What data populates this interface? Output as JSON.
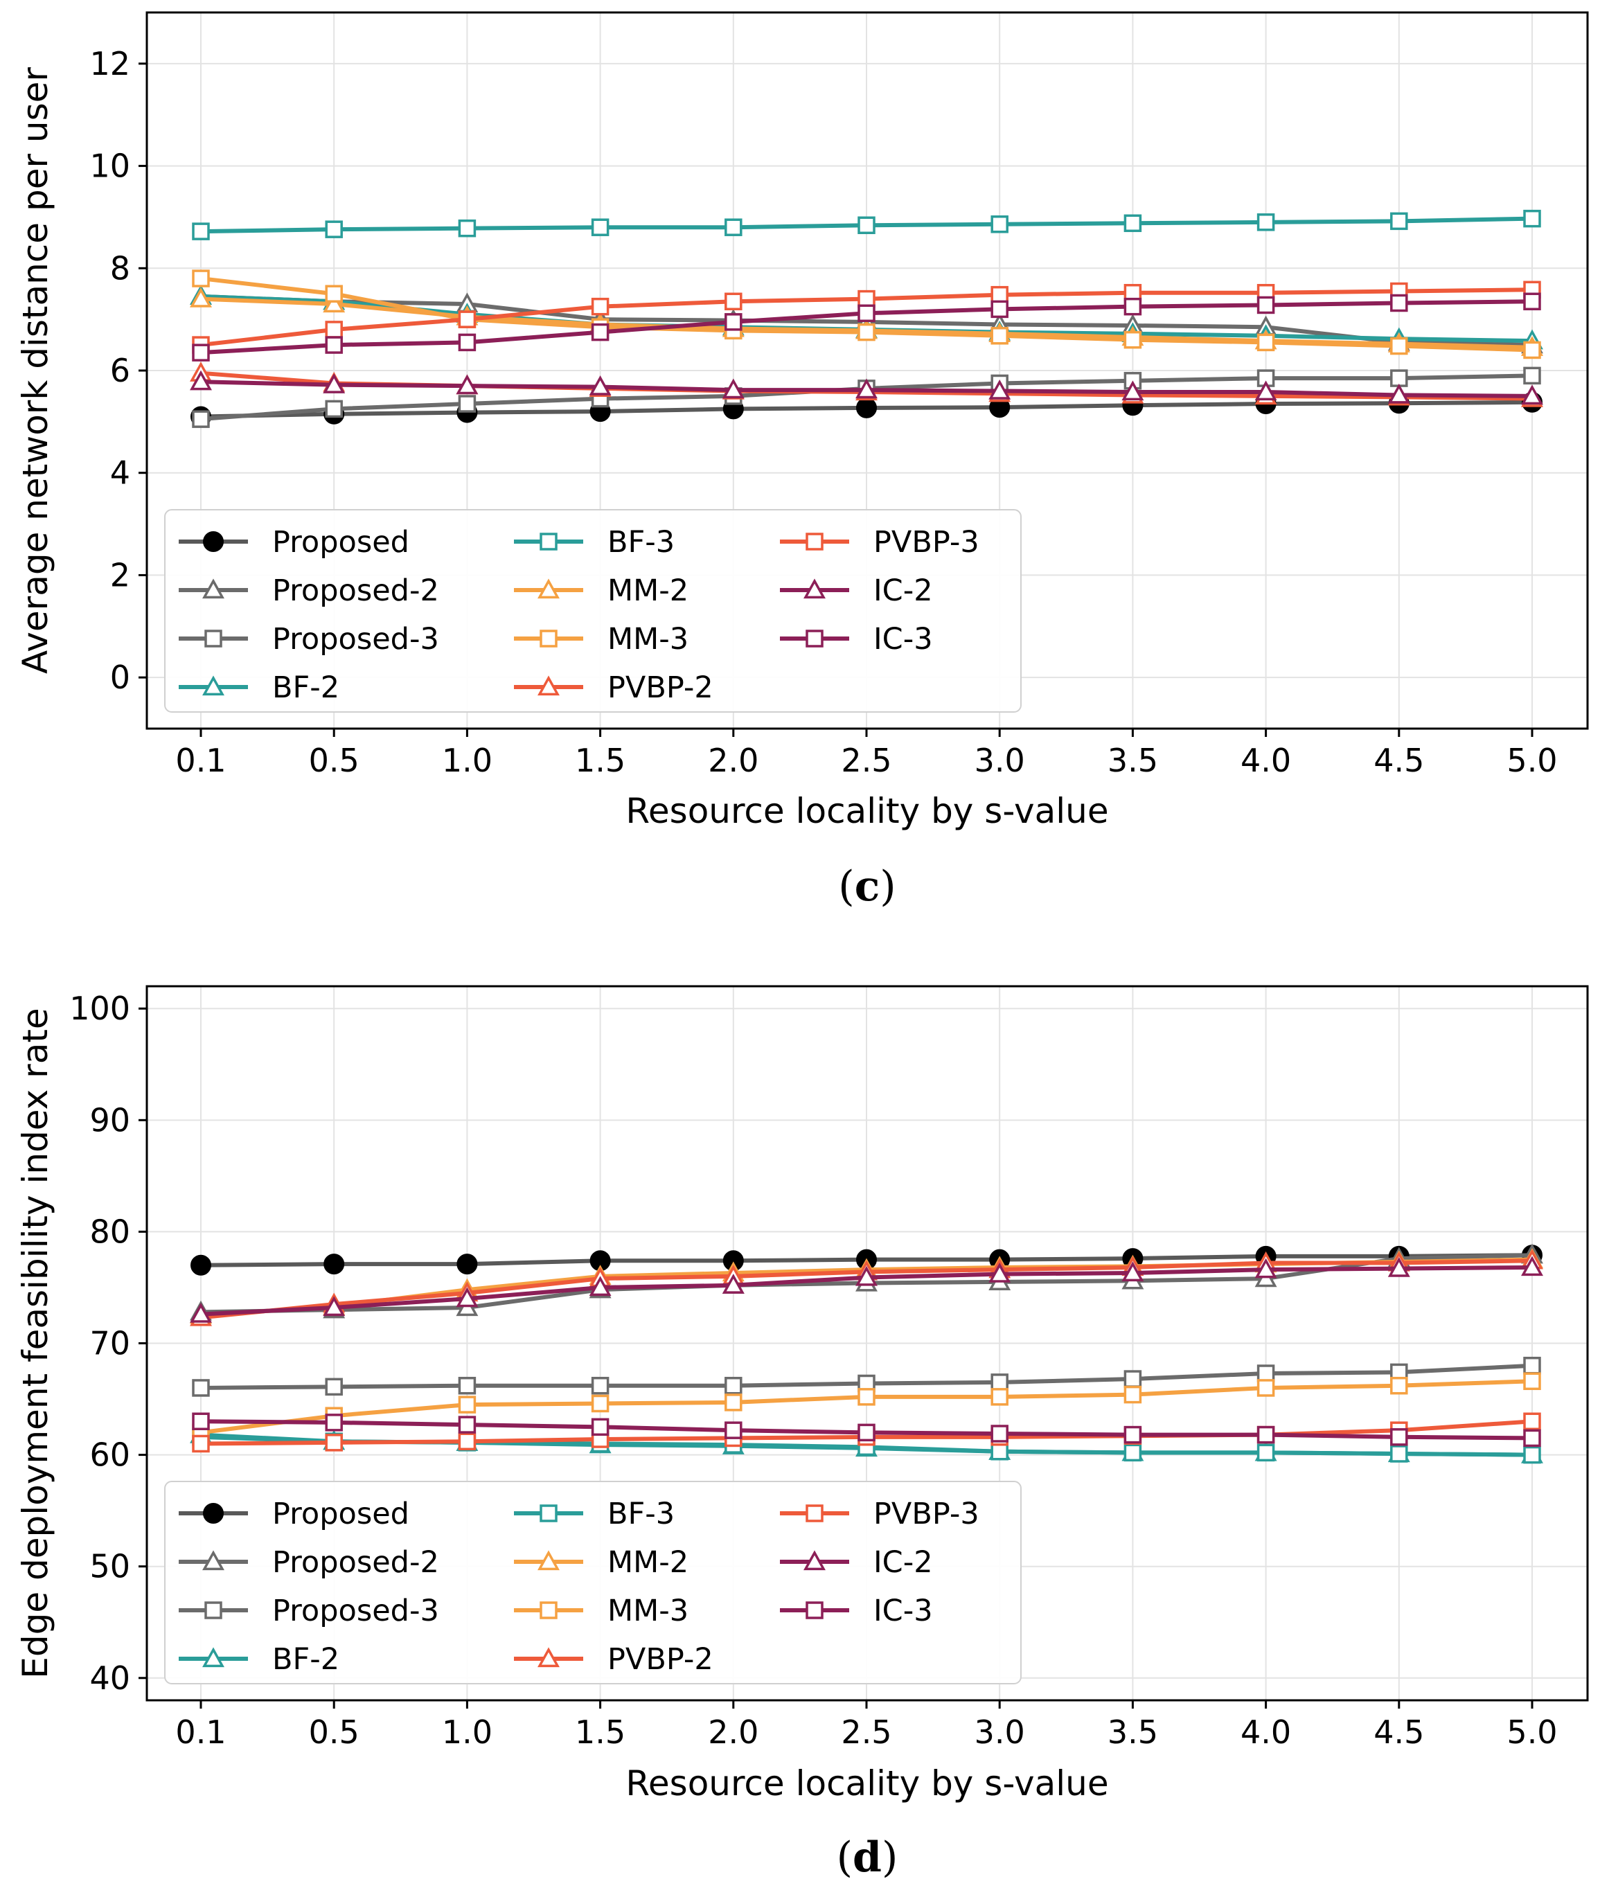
{
  "chart_data": [
    {
      "type": "line",
      "caption_open": "(",
      "caption_letter": "c",
      "caption_close": ")",
      "xlabel": "Resource locality by s-value",
      "ylabel": "Average network distance per user",
      "categories": [
        "0.1",
        "0.5",
        "1.0",
        "1.5",
        "2.0",
        "2.5",
        "3.0",
        "3.5",
        "4.0",
        "4.5",
        "5.0"
      ],
      "ylim": [
        -1,
        13
      ],
      "yticks": [
        0,
        2,
        4,
        6,
        8,
        10,
        12
      ],
      "grid": true,
      "legend_position": "lower-left",
      "series": [
        {
          "name": "Proposed",
          "color": "#595959",
          "marker": "circle",
          "values": [
            5.1,
            5.15,
            5.18,
            5.2,
            5.25,
            5.27,
            5.28,
            5.32,
            5.35,
            5.36,
            5.38
          ]
        },
        {
          "name": "Proposed-2",
          "color": "#6b6b6b",
          "marker": "triangle",
          "values": [
            7.45,
            7.35,
            7.3,
            7.0,
            6.98,
            6.95,
            6.9,
            6.88,
            6.85,
            6.55,
            6.5
          ]
        },
        {
          "name": "Proposed-3",
          "color": "#6b6b6b",
          "marker": "square",
          "values": [
            5.05,
            5.25,
            5.35,
            5.45,
            5.5,
            5.65,
            5.75,
            5.8,
            5.85,
            5.85,
            5.9
          ]
        },
        {
          "name": "BF-2",
          "color": "#2a9d99",
          "marker": "triangle",
          "values": [
            7.45,
            7.35,
            7.1,
            6.9,
            6.85,
            6.8,
            6.75,
            6.72,
            6.68,
            6.62,
            6.58
          ]
        },
        {
          "name": "BF-3",
          "color": "#2a9d99",
          "marker": "square",
          "values": [
            8.72,
            8.76,
            8.78,
            8.8,
            8.8,
            8.84,
            8.86,
            8.88,
            8.9,
            8.92,
            8.97
          ]
        },
        {
          "name": "MM-2",
          "color": "#f5a142",
          "marker": "triangle",
          "values": [
            7.4,
            7.3,
            7.05,
            6.9,
            6.82,
            6.78,
            6.72,
            6.65,
            6.58,
            6.52,
            6.45
          ]
        },
        {
          "name": "MM-3",
          "color": "#f5a142",
          "marker": "square",
          "values": [
            7.8,
            7.5,
            7.0,
            6.85,
            6.78,
            6.75,
            6.68,
            6.6,
            6.55,
            6.48,
            6.4
          ]
        },
        {
          "name": "PVBP-2",
          "color": "#ee5a3a",
          "marker": "triangle",
          "values": [
            5.95,
            5.75,
            5.7,
            5.65,
            5.6,
            5.58,
            5.55,
            5.52,
            5.5,
            5.48,
            5.45
          ]
        },
        {
          "name": "PVBP-3",
          "color": "#ee5a3a",
          "marker": "square",
          "values": [
            6.5,
            6.8,
            7.0,
            7.25,
            7.35,
            7.4,
            7.48,
            7.52,
            7.52,
            7.55,
            7.58
          ]
        },
        {
          "name": "IC-2",
          "color": "#8c1f57",
          "marker": "triangle",
          "values": [
            5.78,
            5.72,
            5.7,
            5.68,
            5.62,
            5.62,
            5.6,
            5.58,
            5.58,
            5.52,
            5.5
          ]
        },
        {
          "name": "IC-3",
          "color": "#8c1f57",
          "marker": "square",
          "values": [
            6.35,
            6.5,
            6.55,
            6.75,
            6.95,
            7.12,
            7.2,
            7.25,
            7.28,
            7.32,
            7.35
          ]
        }
      ]
    },
    {
      "type": "line",
      "caption_open": "(",
      "caption_letter": "d",
      "caption_close": ")",
      "xlabel": "Resource locality by s-value",
      "ylabel": "Edge deployment feasibility index rate",
      "categories": [
        "0.1",
        "0.5",
        "1.0",
        "1.5",
        "2.0",
        "2.5",
        "3.0",
        "3.5",
        "4.0",
        "4.5",
        "5.0"
      ],
      "ylim": [
        38,
        102
      ],
      "yticks": [
        40,
        50,
        60,
        70,
        80,
        90,
        100
      ],
      "grid": true,
      "legend_position": "lower-left",
      "series": [
        {
          "name": "Proposed",
          "color": "#595959",
          "marker": "circle",
          "values": [
            77.0,
            77.1,
            77.1,
            77.4,
            77.4,
            77.5,
            77.5,
            77.6,
            77.8,
            77.8,
            77.9
          ]
        },
        {
          "name": "Proposed-2",
          "color": "#6b6b6b",
          "marker": "triangle",
          "values": [
            72.8,
            73.0,
            73.2,
            74.8,
            75.2,
            75.4,
            75.5,
            75.6,
            75.8,
            77.6,
            77.9
          ]
        },
        {
          "name": "Proposed-3",
          "color": "#6b6b6b",
          "marker": "square",
          "values": [
            66.0,
            66.1,
            66.2,
            66.2,
            66.2,
            66.4,
            66.5,
            66.8,
            67.3,
            67.4,
            68.0
          ]
        },
        {
          "name": "BF-2",
          "color": "#2a9d99",
          "marker": "triangle",
          "values": [
            61.8,
            61.2,
            61.1,
            60.9,
            60.8,
            60.6,
            60.3,
            60.2,
            60.2,
            60.1,
            60.0
          ]
        },
        {
          "name": "BF-3",
          "color": "#2a9d99",
          "marker": "square",
          "values": [
            61.6,
            61.2,
            61.1,
            61.0,
            60.9,
            60.7,
            60.3,
            60.2,
            60.2,
            60.1,
            60.0
          ]
        },
        {
          "name": "MM-2",
          "color": "#f5a142",
          "marker": "triangle",
          "values": [
            72.5,
            73.3,
            74.8,
            76.0,
            76.3,
            76.6,
            76.8,
            76.9,
            77.1,
            77.3,
            77.5
          ]
        },
        {
          "name": "MM-3",
          "color": "#f5a142",
          "marker": "square",
          "values": [
            62.0,
            63.5,
            64.5,
            64.6,
            64.7,
            65.2,
            65.2,
            65.4,
            66.0,
            66.2,
            66.6
          ]
        },
        {
          "name": "PVBP-2",
          "color": "#ee5a3a",
          "marker": "triangle",
          "values": [
            72.3,
            73.5,
            74.5,
            75.8,
            76.0,
            76.4,
            76.6,
            76.8,
            77.2,
            77.2,
            77.4
          ]
        },
        {
          "name": "PVBP-3",
          "color": "#ee5a3a",
          "marker": "square",
          "values": [
            61.0,
            61.1,
            61.2,
            61.4,
            61.5,
            61.6,
            61.6,
            61.7,
            61.8,
            62.2,
            63.0
          ]
        },
        {
          "name": "IC-2",
          "color": "#8c1f57",
          "marker": "triangle",
          "values": [
            72.6,
            73.2,
            74.0,
            75.0,
            75.2,
            75.9,
            76.2,
            76.3,
            76.6,
            76.7,
            76.8
          ]
        },
        {
          "name": "IC-3",
          "color": "#8c1f57",
          "marker": "square",
          "values": [
            63.0,
            62.9,
            62.7,
            62.5,
            62.2,
            62.0,
            61.9,
            61.8,
            61.8,
            61.6,
            61.5
          ]
        }
      ]
    }
  ]
}
